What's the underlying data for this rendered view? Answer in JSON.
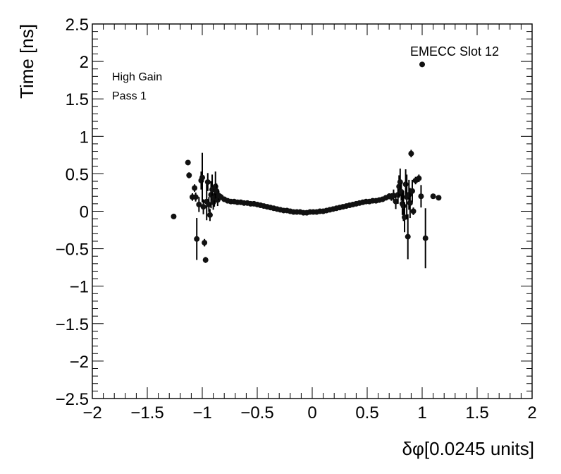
{
  "chart_data": {
    "type": "scatter",
    "title": "",
    "xlabel": "δφ[0.0245 units]",
    "ylabel": "Time [ns]",
    "xlim": [
      -2,
      2
    ],
    "ylim": [
      -2.5,
      2.5
    ],
    "x_ticks": [
      "−2",
      "−1.5",
      "−1",
      "−0.5",
      "0",
      "0.5",
      "1",
      "1.5",
      "2"
    ],
    "x_tick_values": [
      -2,
      -1.5,
      -1,
      -0.5,
      0,
      0.5,
      1,
      1.5,
      2
    ],
    "y_ticks": [
      "2.5",
      "2",
      "1.5",
      "1",
      "0.5",
      "0",
      "−0.5",
      "−1",
      "−1.5",
      "−2",
      "−2.5"
    ],
    "y_tick_values": [
      2.5,
      2,
      1.5,
      1,
      0.5,
      0,
      -0.5,
      -1,
      -1.5,
      -2,
      -2.5
    ],
    "grid": false,
    "annotations": {
      "top_left": [
        "High Gain",
        "Pass 1"
      ],
      "top_right": "EMECC Slot 12"
    },
    "series": [
      {
        "points": [
          {
            "x": -1.26,
            "y": -0.07,
            "err": 0.02
          },
          {
            "x": -1.13,
            "y": 0.65,
            "err": 0.03
          },
          {
            "x": -1.12,
            "y": 0.48,
            "err": 0.04
          },
          {
            "x": -1.09,
            "y": 0.19,
            "err": 0.05
          },
          {
            "x": -1.07,
            "y": 0.31,
            "err": 0.05
          },
          {
            "x": -1.06,
            "y": 0.19,
            "err": 0.06
          },
          {
            "x": -1.05,
            "y": -0.37,
            "err": 0.28
          },
          {
            "x": -1.03,
            "y": 0.09,
            "err": 0.1
          },
          {
            "x": -1.01,
            "y": 0.41,
            "err": 0.12
          },
          {
            "x": -1.0,
            "y": 0.45,
            "err": 0.33
          },
          {
            "x": -0.99,
            "y": 0.06,
            "err": 0.1
          },
          {
            "x": -0.98,
            "y": -0.42,
            "err": 0.05
          },
          {
            "x": -0.97,
            "y": -0.65,
            "err": 0.04
          },
          {
            "x": -0.96,
            "y": 0.13,
            "err": 0.25
          },
          {
            "x": -0.95,
            "y": 0.39,
            "err": 0.12
          },
          {
            "x": -0.94,
            "y": 0.09,
            "err": 0.1
          },
          {
            "x": -0.93,
            "y": -0.05,
            "err": 0.08
          },
          {
            "x": -0.92,
            "y": 0.22,
            "err": 0.18
          },
          {
            "x": -0.91,
            "y": 0.29,
            "err": 0.2
          },
          {
            "x": -0.9,
            "y": 0.12,
            "err": 0.1
          },
          {
            "x": -0.89,
            "y": 0.18,
            "err": 0.12
          },
          {
            "x": -0.88,
            "y": 0.33,
            "err": 0.2
          },
          {
            "x": -0.87,
            "y": 0.27,
            "err": 0.1
          },
          {
            "x": -0.86,
            "y": 0.15,
            "err": 0.08
          },
          {
            "x": -0.85,
            "y": 0.21,
            "err": 0.06
          },
          {
            "x": -0.83,
            "y": 0.19,
            "err": 0.04
          },
          {
            "x": -0.8,
            "y": 0.16,
            "err": 0.03
          },
          {
            "x": -0.77,
            "y": 0.14,
            "err": 0.02
          },
          {
            "x": -0.74,
            "y": 0.13,
            "err": 0.02
          },
          {
            "x": -0.71,
            "y": 0.13,
            "err": 0.01
          },
          {
            "x": -0.68,
            "y": 0.12,
            "err": 0.01
          },
          {
            "x": -0.65,
            "y": 0.12,
            "err": 0.01
          },
          {
            "x": -0.62,
            "y": 0.11,
            "err": 0.01
          },
          {
            "x": -0.59,
            "y": 0.11,
            "err": 0.01
          },
          {
            "x": -0.56,
            "y": 0.1,
            "err": 0.01
          },
          {
            "x": -0.53,
            "y": 0.1,
            "err": 0.01
          },
          {
            "x": -0.5,
            "y": 0.09,
            "err": 0.01
          },
          {
            "x": -0.47,
            "y": 0.08,
            "err": 0.01
          },
          {
            "x": -0.44,
            "y": 0.07,
            "err": 0.01
          },
          {
            "x": -0.41,
            "y": 0.06,
            "err": 0.01
          },
          {
            "x": -0.38,
            "y": 0.05,
            "err": 0.01
          },
          {
            "x": -0.35,
            "y": 0.04,
            "err": 0.01
          },
          {
            "x": -0.32,
            "y": 0.03,
            "err": 0.01
          },
          {
            "x": -0.29,
            "y": 0.02,
            "err": 0.01
          },
          {
            "x": -0.26,
            "y": 0.01,
            "err": 0.01
          },
          {
            "x": -0.23,
            "y": 0.01,
            "err": 0.01
          },
          {
            "x": -0.2,
            "y": 0.0,
            "err": 0.01
          },
          {
            "x": -0.17,
            "y": -0.01,
            "err": 0.01
          },
          {
            "x": -0.14,
            "y": -0.01,
            "err": 0.01
          },
          {
            "x": -0.11,
            "y": -0.01,
            "err": 0.01
          },
          {
            "x": -0.08,
            "y": -0.02,
            "err": 0.01
          },
          {
            "x": -0.05,
            "y": -0.02,
            "err": 0.01
          },
          {
            "x": -0.02,
            "y": -0.01,
            "err": 0.01
          },
          {
            "x": 0.01,
            "y": -0.01,
            "err": 0.01
          },
          {
            "x": 0.04,
            "y": -0.01,
            "err": 0.01
          },
          {
            "x": 0.07,
            "y": 0.0,
            "err": 0.01
          },
          {
            "x": 0.1,
            "y": 0.0,
            "err": 0.01
          },
          {
            "x": 0.13,
            "y": 0.01,
            "err": 0.01
          },
          {
            "x": 0.16,
            "y": 0.02,
            "err": 0.01
          },
          {
            "x": 0.19,
            "y": 0.03,
            "err": 0.01
          },
          {
            "x": 0.22,
            "y": 0.04,
            "err": 0.01
          },
          {
            "x": 0.25,
            "y": 0.05,
            "err": 0.01
          },
          {
            "x": 0.28,
            "y": 0.06,
            "err": 0.01
          },
          {
            "x": 0.31,
            "y": 0.07,
            "err": 0.01
          },
          {
            "x": 0.34,
            "y": 0.08,
            "err": 0.01
          },
          {
            "x": 0.37,
            "y": 0.09,
            "err": 0.01
          },
          {
            "x": 0.4,
            "y": 0.1,
            "err": 0.01
          },
          {
            "x": 0.43,
            "y": 0.11,
            "err": 0.01
          },
          {
            "x": 0.46,
            "y": 0.12,
            "err": 0.01
          },
          {
            "x": 0.49,
            "y": 0.13,
            "err": 0.01
          },
          {
            "x": 0.52,
            "y": 0.13,
            "err": 0.01
          },
          {
            "x": 0.55,
            "y": 0.14,
            "err": 0.01
          },
          {
            "x": 0.58,
            "y": 0.14,
            "err": 0.01
          },
          {
            "x": 0.61,
            "y": 0.15,
            "err": 0.02
          },
          {
            "x": 0.64,
            "y": 0.16,
            "err": 0.02
          },
          {
            "x": 0.67,
            "y": 0.18,
            "err": 0.03
          },
          {
            "x": 0.7,
            "y": 0.2,
            "err": 0.04
          },
          {
            "x": 0.72,
            "y": 0.19,
            "err": 0.05
          },
          {
            "x": 0.74,
            "y": 0.21,
            "err": 0.08
          },
          {
            "x": 0.76,
            "y": 0.13,
            "err": 0.1
          },
          {
            "x": 0.78,
            "y": 0.22,
            "err": 0.12
          },
          {
            "x": 0.79,
            "y": 0.33,
            "err": 0.15
          },
          {
            "x": 0.8,
            "y": 0.39,
            "err": 0.18
          },
          {
            "x": 0.81,
            "y": 0.26,
            "err": 0.12
          },
          {
            "x": 0.82,
            "y": 0.1,
            "err": 0.15
          },
          {
            "x": 0.83,
            "y": 0.07,
            "err": 0.2
          },
          {
            "x": 0.84,
            "y": -0.08,
            "err": 0.2
          },
          {
            "x": 0.85,
            "y": 0.36,
            "err": 0.2
          },
          {
            "x": 0.86,
            "y": 0.19,
            "err": 0.3
          },
          {
            "x": 0.87,
            "y": -0.34,
            "err": 0.3
          },
          {
            "x": 0.88,
            "y": 0.22,
            "err": 0.2
          },
          {
            "x": 0.89,
            "y": 0.11,
            "err": 0.2
          },
          {
            "x": 0.9,
            "y": 0.77,
            "err": 0.05
          },
          {
            "x": 0.91,
            "y": 0.27,
            "err": 0.15
          },
          {
            "x": 0.92,
            "y": 0.0,
            "err": 0.05
          },
          {
            "x": 0.94,
            "y": 0.41,
            "err": 0.05
          },
          {
            "x": 0.97,
            "y": 0.44,
            "err": 0.05
          },
          {
            "x": 0.99,
            "y": 0.2,
            "err": 0.15
          },
          {
            "x": 1.0,
            "y": 1.96,
            "err": 0.03
          },
          {
            "x": 1.03,
            "y": -0.36,
            "err": 0.4
          },
          {
            "x": 1.1,
            "y": 0.2,
            "err": 0.03
          },
          {
            "x": 1.15,
            "y": 0.18,
            "err": 0.03
          }
        ]
      }
    ]
  }
}
